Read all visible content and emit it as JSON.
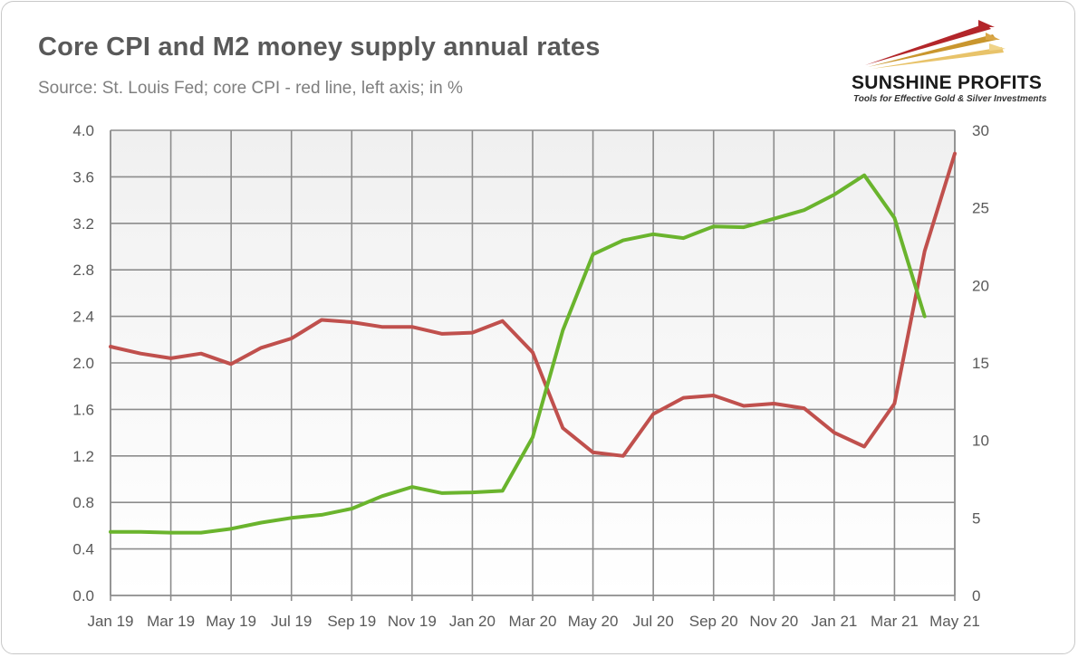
{
  "header": {
    "title": "Core CPI and M2 money supply annual rates",
    "subtitle": "Source: St. Louis Fed; core CPI - red line, left axis; in %"
  },
  "logo": {
    "name": "SUNSHINE PROFITS",
    "tagline": "Tools for Effective Gold & Silver Investments"
  },
  "chart_data": {
    "type": "line",
    "x": [
      "Jan 19",
      "Feb 19",
      "Mar 19",
      "Apr 19",
      "May 19",
      "Jun 19",
      "Jul 19",
      "Aug 19",
      "Sep 19",
      "Oct 19",
      "Nov 19",
      "Dec 19",
      "Jan 20",
      "Feb 20",
      "Mar 20",
      "Apr 20",
      "May 20",
      "Jun 20",
      "Jul 20",
      "Aug 20",
      "Sep 20",
      "Oct 20",
      "Nov 20",
      "Dec 20",
      "Jan 21",
      "Feb 21",
      "Mar 21",
      "Apr 21",
      "May 21"
    ],
    "x_tick_labels": [
      "Jan 19",
      "Mar 19",
      "May 19",
      "Jul 19",
      "Sep 19",
      "Nov 19",
      "Jan 20",
      "Mar 20",
      "May 20",
      "Jul 20",
      "Sep 20",
      "Nov 20",
      "Jan 21",
      "Mar 21",
      "May 21"
    ],
    "y_left_ticks": [
      "0.0",
      "0.4",
      "0.8",
      "1.2",
      "1.6",
      "2.0",
      "2.4",
      "2.8",
      "3.2",
      "3.6",
      "4.0"
    ],
    "y_right_ticks": [
      "0",
      "5",
      "10",
      "15",
      "20",
      "25",
      "30"
    ],
    "ylim_left": [
      0,
      4.0
    ],
    "ylim_right": [
      0,
      30
    ],
    "grid": true,
    "series": [
      {
        "axis": "left",
        "color": "#c0504d",
        "values": [
          2.14,
          2.08,
          2.04,
          2.08,
          1.99,
          2.13,
          2.21,
          2.37,
          2.35,
          2.31,
          2.31,
          2.25,
          2.26,
          2.36,
          2.09,
          1.44,
          1.23,
          1.2,
          1.56,
          1.7,
          1.72,
          1.63,
          1.65,
          1.61,
          1.4,
          1.28,
          1.65,
          2.96,
          3.8
        ]
      },
      {
        "axis": "right",
        "color": "#6ab42d",
        "values": [
          4.1,
          4.1,
          4.05,
          4.05,
          4.3,
          4.7,
          5.0,
          5.2,
          5.6,
          6.4,
          7.0,
          6.6,
          6.65,
          6.75,
          10.2,
          17.1,
          22.0,
          22.9,
          23.3,
          23.05,
          23.8,
          23.75,
          24.3,
          24.85,
          25.85,
          27.1,
          24.35,
          18.0,
          null
        ]
      }
    ]
  }
}
